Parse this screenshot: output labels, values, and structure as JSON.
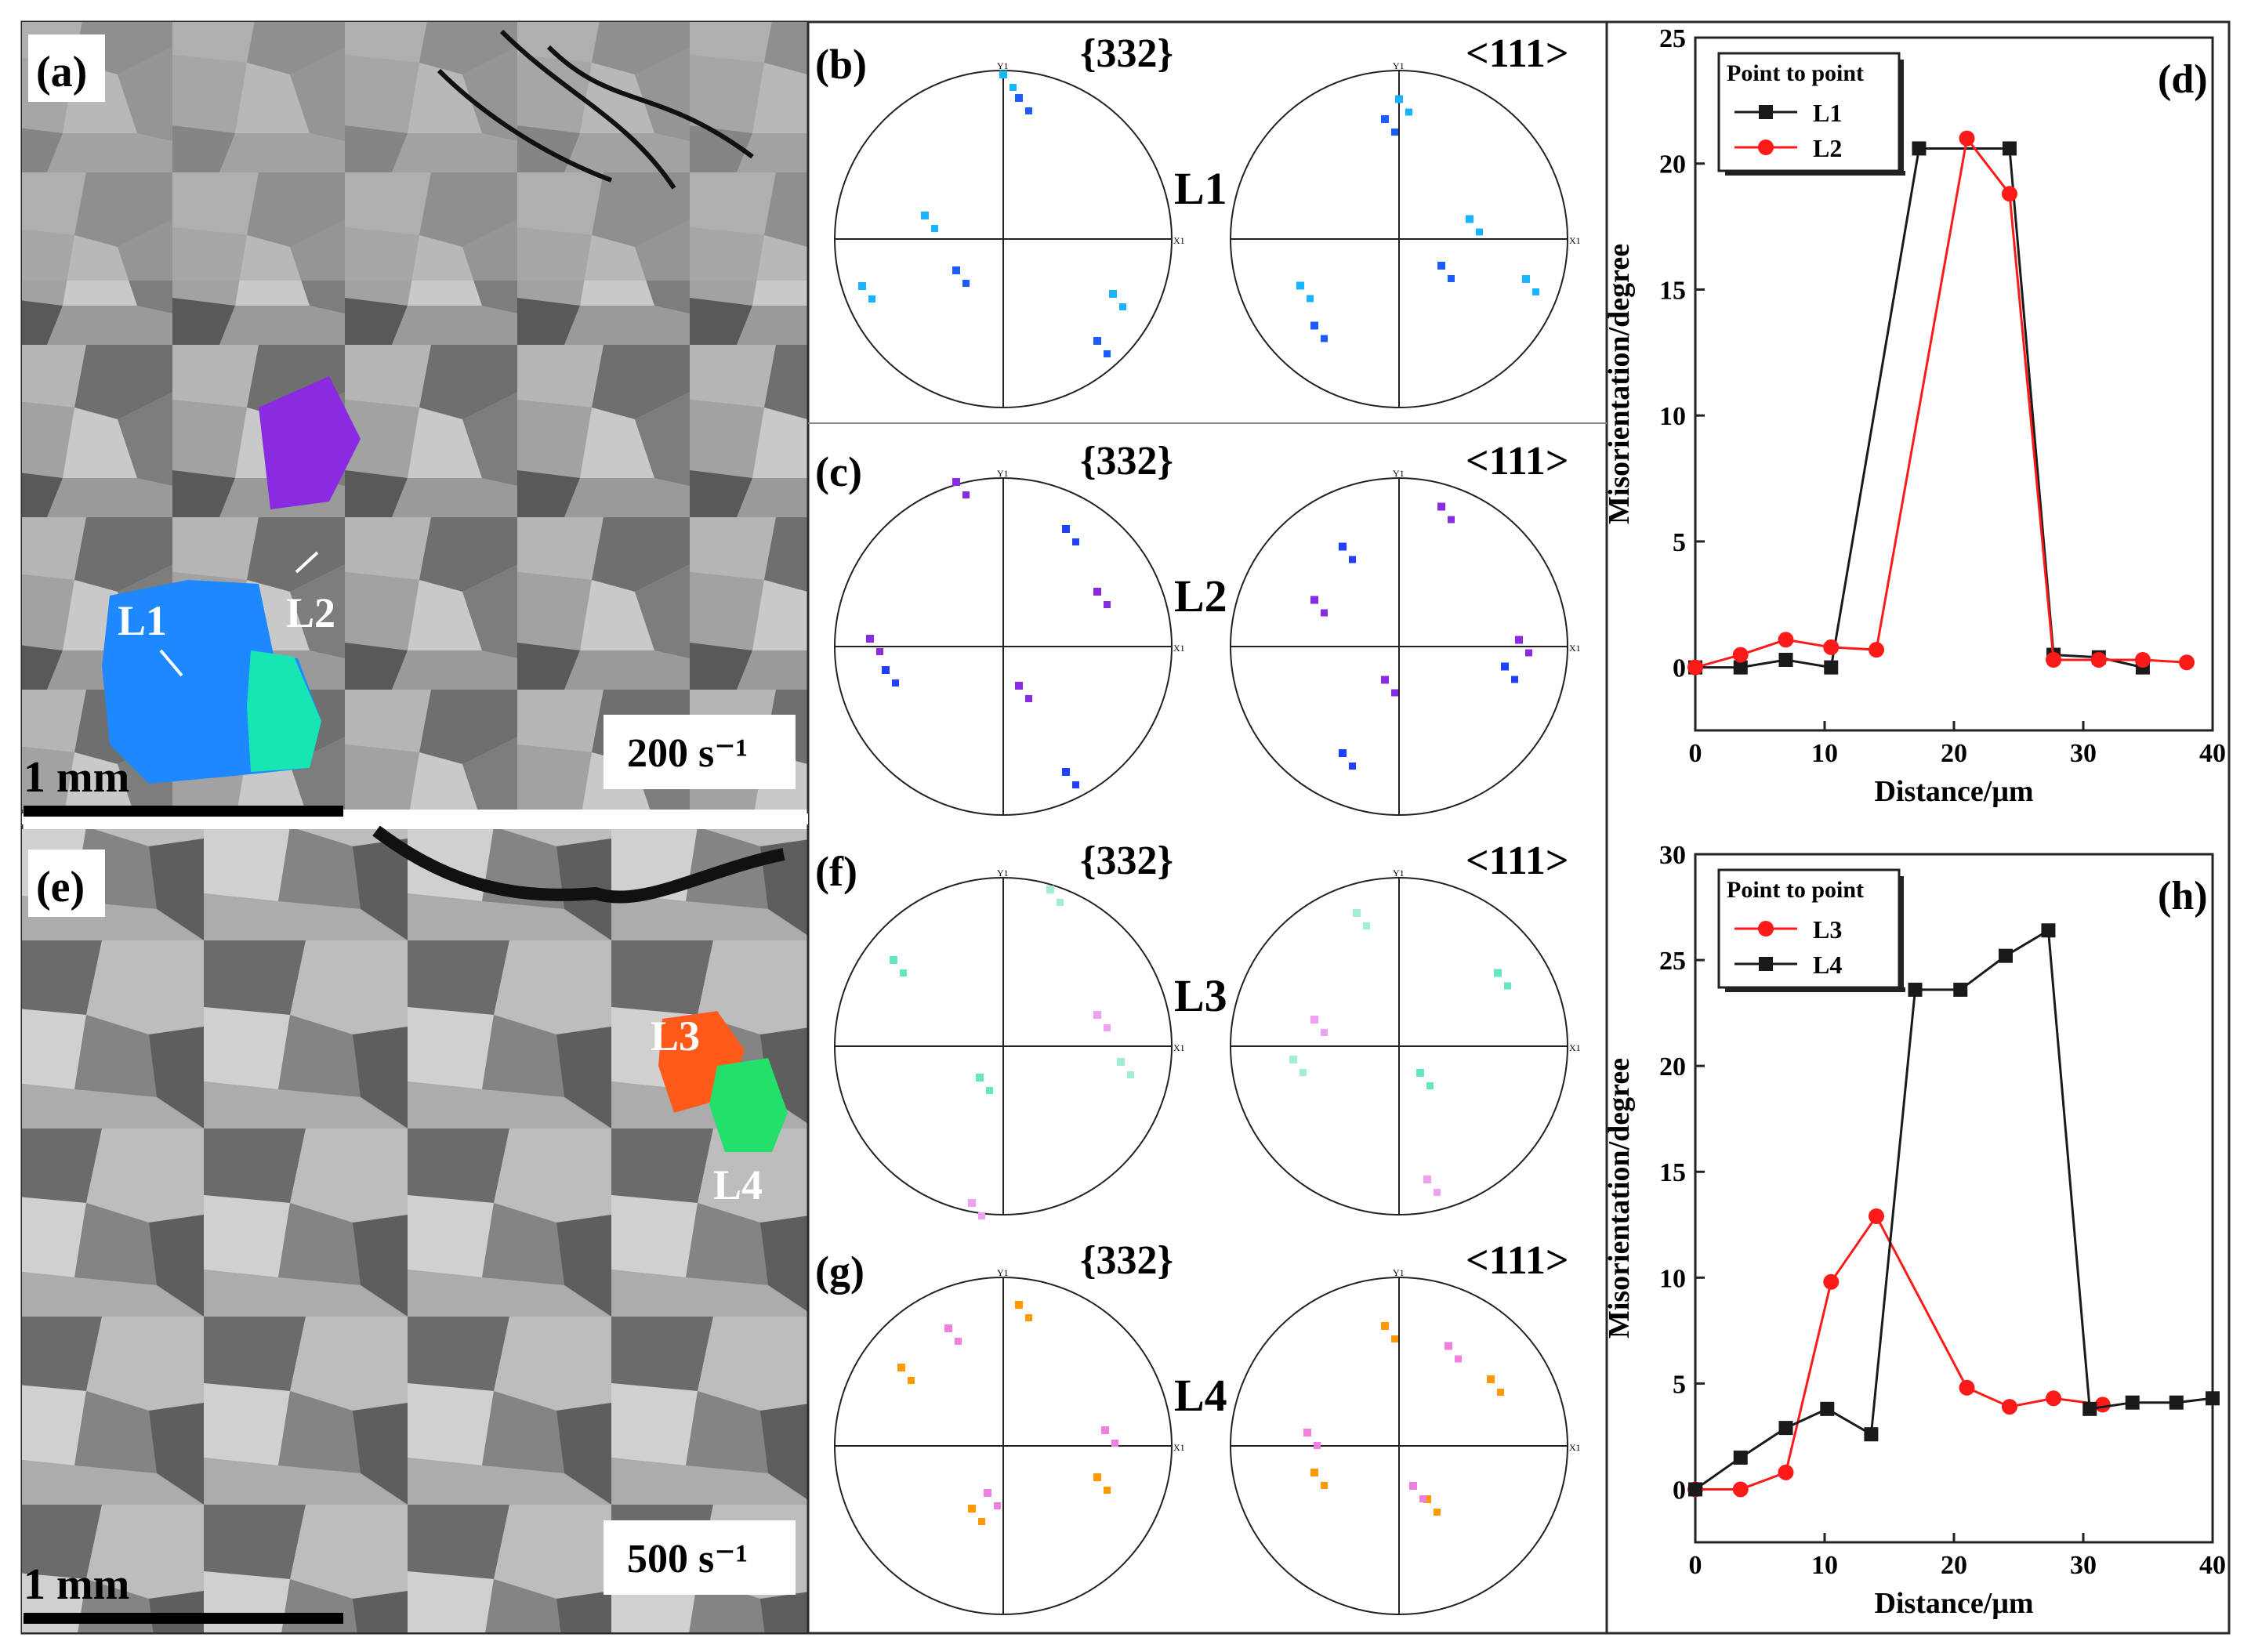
{
  "panels": {
    "a": {
      "label": "(a)",
      "rate": "200 s⁻¹",
      "scale": "1 mm",
      "line_labels": [
        "L1",
        "L2"
      ]
    },
    "e": {
      "label": "(e)",
      "rate": "500 s⁻¹",
      "scale": "1 mm",
      "line_labels": [
        "L3",
        "L4"
      ]
    },
    "pole": {
      "col1": "{332}",
      "col2": "<111>",
      "rows": [
        {
          "label": "(b)",
          "line": "L1"
        },
        {
          "label": "(c)",
          "line": "L2"
        },
        {
          "label": "(f)",
          "line": "L3"
        },
        {
          "label": "(g)",
          "line": "L4"
        }
      ],
      "axis_y": "Y1",
      "axis_x": "X1"
    }
  },
  "colors": {
    "L1": "#1a1a1a",
    "L2": "#ff1a1a",
    "L3": "#ff1a1a",
    "L4": "#1a1a1a",
    "blue": "#1e88ff",
    "cyan": "#19b4ff",
    "violet": "#8a2be2"
  },
  "chart_data": [
    {
      "type": "line",
      "panel": "(d)",
      "xlabel": "Distance/μm",
      "ylabel": "Misorientation/degree",
      "xlim": [
        0,
        40
      ],
      "ylim": [
        -2.5,
        25
      ],
      "xticks": [
        0,
        10,
        20,
        30,
        40
      ],
      "yticks": [
        0,
        5,
        10,
        15,
        20,
        25
      ],
      "legend_title": "Point to point",
      "legend_position": "top-left",
      "series": [
        {
          "name": "L1",
          "marker": "square",
          "color": "#1a1a1a",
          "x": [
            0,
            3.5,
            7,
            10.5,
            17.3,
            24.3,
            27.7,
            31.2,
            34.6
          ],
          "y": [
            0,
            0,
            0.3,
            0,
            20.6,
            20.6,
            0.5,
            0.4,
            0
          ]
        },
        {
          "name": "L2",
          "marker": "circle",
          "color": "#ff1a1a",
          "x": [
            0,
            3.5,
            7,
            10.5,
            14,
            21,
            24.3,
            27.7,
            31.2,
            34.6,
            38
          ],
          "y": [
            0,
            0.5,
            1.1,
            0.8,
            0.7,
            21,
            18.8,
            0.3,
            0.3,
            0.3,
            0.2
          ]
        }
      ]
    },
    {
      "type": "line",
      "panel": "(h)",
      "xlabel": "Distance/μm",
      "ylabel": "Misorientation/degree",
      "xlim": [
        0,
        40
      ],
      "ylim": [
        -2.5,
        30
      ],
      "xticks": [
        0,
        10,
        20,
        30,
        40
      ],
      "yticks": [
        0,
        5,
        10,
        15,
        20,
        25,
        30
      ],
      "legend_title": "Point to point",
      "legend_position": "top-left",
      "series": [
        {
          "name": "L3",
          "marker": "circle",
          "color": "#ff1a1a",
          "x": [
            0,
            3.5,
            7,
            10.5,
            14,
            21,
            24.3,
            27.7,
            31.5
          ],
          "y": [
            0,
            0,
            0.8,
            9.8,
            12.9,
            4.8,
            3.9,
            4.3,
            4.0
          ]
        },
        {
          "name": "L4",
          "marker": "square",
          "color": "#1a1a1a",
          "x": [
            0,
            3.5,
            7,
            10.2,
            13.6,
            17,
            20.5,
            24,
            27.3,
            30.5,
            33.8,
            37.2,
            40
          ],
          "y": [
            0,
            1.5,
            2.9,
            3.8,
            2.6,
            23.6,
            23.6,
            25.2,
            26.4,
            3.8,
            4.1,
            4.1,
            4.3
          ]
        }
      ]
    }
  ]
}
